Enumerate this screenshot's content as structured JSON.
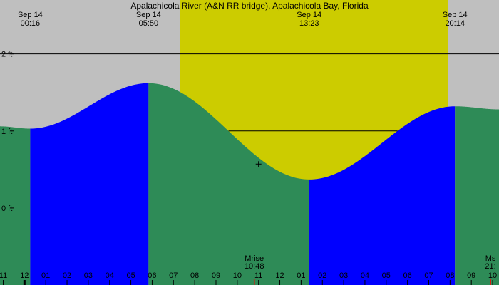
{
  "colors": {
    "background": "#bfbfbf",
    "daylight": "#cccc00",
    "rising": "#0000ff",
    "falling": "#2e8b57",
    "line": "#000000",
    "moon_tick": "#ff0000"
  },
  "chart_data": {
    "type": "area",
    "title": "Apalachicola River (A&N RR bridge), Apalachicola Bay, Florida",
    "xlabel": "",
    "ylabel": "",
    "x_range_hours": [
      -1.15,
      22.3
    ],
    "ylim": [
      -1.0,
      2.7
    ],
    "y_ticks": [
      {
        "value": 2,
        "label": "2 ft"
      },
      {
        "value": 1,
        "label": "1 ft"
      },
      {
        "value": 0,
        "label": "0 ft"
      }
    ],
    "reference_lines": [
      2,
      1
    ],
    "tide_events": [
      {
        "date": "Sep 14",
        "time": "00:16",
        "hour": 0.27,
        "height_ft": 1.03,
        "type": "low"
      },
      {
        "date": "Sep 14",
        "time": "05:50",
        "hour": 5.83,
        "height_ft": 1.62,
        "type": "high"
      },
      {
        "date": "Sep 14",
        "time": "13:23",
        "hour": 13.38,
        "height_ft": 0.37,
        "type": "low"
      },
      {
        "date": "Sep 14",
        "time": "20:14",
        "hour": 20.23,
        "height_ft": 1.32,
        "type": "high"
      }
    ],
    "edge_heights_ft": {
      "start": 1.06,
      "end": 1.28
    },
    "daylight_hours": [
      7.3,
      19.9
    ],
    "moon_events": [
      {
        "label": "Mrise",
        "time": "10:48",
        "hour": 10.8
      },
      {
        "label": "Ms",
        "time": "21:",
        "hour": 21.9
      }
    ],
    "marker": {
      "hour": 11.0,
      "height_ft": 0.57
    },
    "hour_labels": [
      {
        "label": "11",
        "hour": -1
      },
      {
        "label": "12",
        "hour": 0
      },
      {
        "label": "01",
        "hour": 1
      },
      {
        "label": "02",
        "hour": 2
      },
      {
        "label": "03",
        "hour": 3
      },
      {
        "label": "04",
        "hour": 4
      },
      {
        "label": "05",
        "hour": 5
      },
      {
        "label": "06",
        "hour": 6
      },
      {
        "label": "07",
        "hour": 7
      },
      {
        "label": "08",
        "hour": 8
      },
      {
        "label": "09",
        "hour": 9
      },
      {
        "label": "10",
        "hour": 10
      },
      {
        "label": "11",
        "hour": 11
      },
      {
        "label": "12",
        "hour": 12
      },
      {
        "label": "01",
        "hour": 13
      },
      {
        "label": "02",
        "hour": 14
      },
      {
        "label": "03",
        "hour": 15
      },
      {
        "label": "04",
        "hour": 16
      },
      {
        "label": "05",
        "hour": 17
      },
      {
        "label": "06",
        "hour": 18
      },
      {
        "label": "07",
        "hour": 19
      },
      {
        "label": "08",
        "hour": 20
      },
      {
        "label": "09",
        "hour": 21
      },
      {
        "label": "10",
        "hour": 22
      }
    ]
  }
}
